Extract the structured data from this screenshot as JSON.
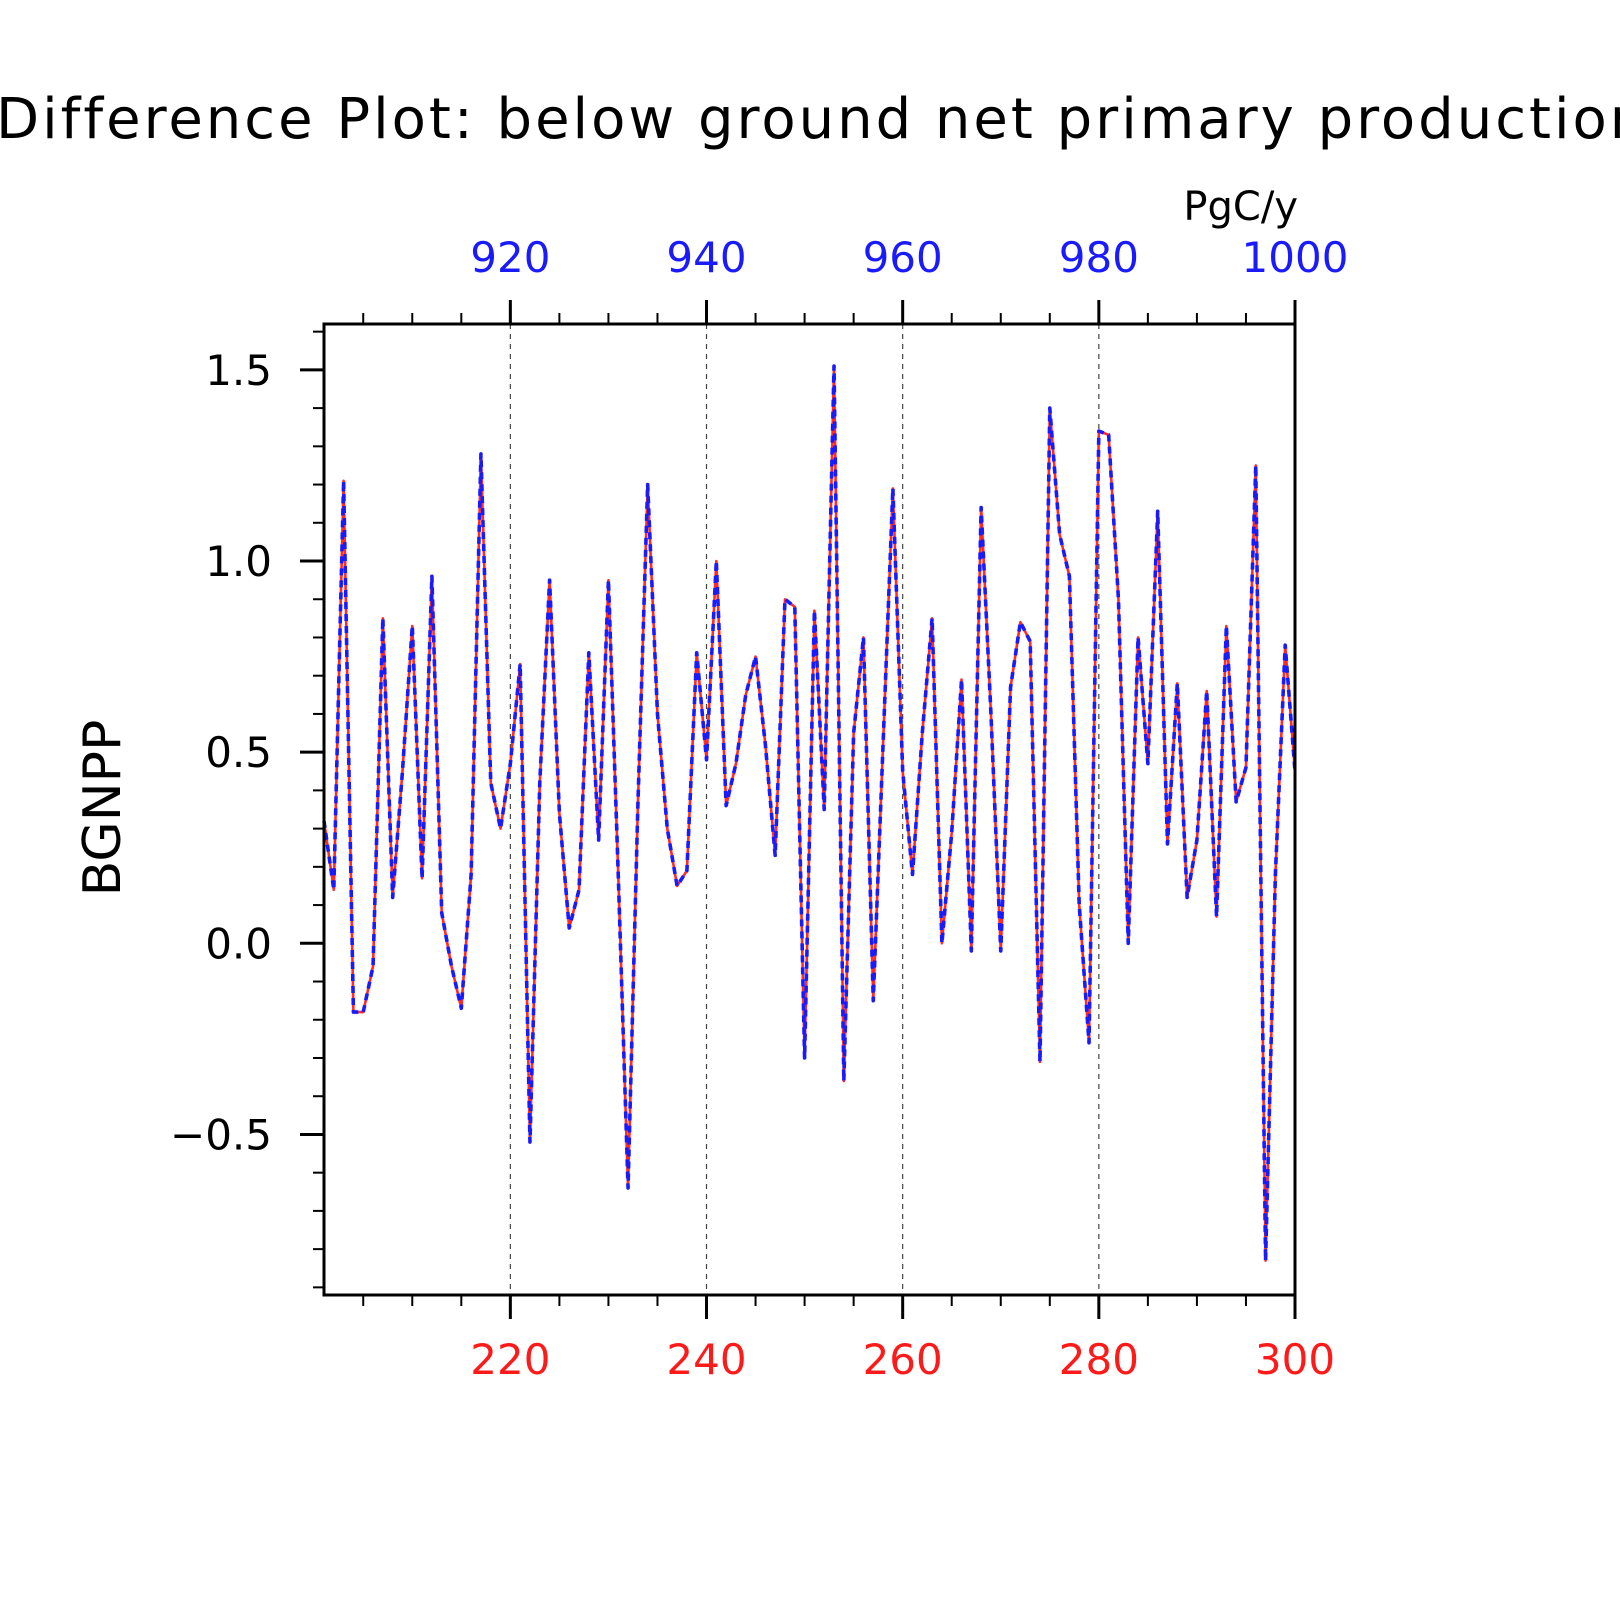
{
  "chart_data": {
    "type": "line",
    "title": "Difference Plot: below ground net primary production",
    "units": "PgC/y",
    "ylabel": "BGNPP",
    "xlabel": "",
    "xlim": [
      201,
      300
    ],
    "ylim": [
      -0.92,
      1.62
    ],
    "top_axis": {
      "ticks": [
        920,
        940,
        960,
        980,
        1000
      ],
      "labels": [
        "920",
        "940",
        "960",
        "980",
        "1000"
      ],
      "color": "#1a1aff"
    },
    "bottom_axis": {
      "ticks": [
        220,
        240,
        260,
        280,
        300
      ],
      "labels": [
        "220",
        "240",
        "260",
        "280",
        "300"
      ],
      "color": "#ff1a1a"
    },
    "y_ticks": [
      -0.5,
      0.0,
      0.5,
      1.0,
      1.5
    ],
    "y_tick_labels": [
      "−0.5",
      "0.0",
      "0.5",
      "1.0",
      "1.5"
    ],
    "grid": "vertical-dashed",
    "series": [
      {
        "style": "solid",
        "color": "#ff2a2a",
        "x_start": 201,
        "x_step": 1,
        "values": [
          0.32,
          0.14,
          1.21,
          -0.18,
          -0.18,
          -0.06,
          0.85,
          0.12,
          0.45,
          0.83,
          0.17,
          0.96,
          0.08,
          -0.06,
          -0.17,
          0.18,
          1.28,
          0.42,
          0.3,
          0.47,
          0.73,
          -0.52,
          0.42,
          0.95,
          0.34,
          0.04,
          0.14,
          0.76,
          0.27,
          0.95,
          0.18,
          -0.64,
          0.36,
          1.2,
          0.6,
          0.3,
          0.15,
          0.19,
          0.76,
          0.48,
          1.0,
          0.36,
          0.47,
          0.65,
          0.75,
          0.52,
          0.23,
          0.9,
          0.88,
          -0.3,
          0.87,
          0.35,
          1.51,
          -0.36,
          0.55,
          0.8,
          -0.15,
          0.52,
          1.19,
          0.45,
          0.18,
          0.55,
          0.85,
          0.0,
          0.29,
          0.69,
          -0.02,
          1.14,
          0.6,
          -0.02,
          0.67,
          0.84,
          0.79,
          -0.31,
          1.4,
          1.07,
          0.96,
          0.1,
          -0.26,
          1.34,
          1.33,
          0.9,
          0.0,
          0.8,
          0.47,
          1.13,
          0.26,
          0.68,
          0.12,
          0.27,
          0.66,
          0.07,
          0.83,
          0.37,
          0.46,
          1.25,
          -0.83,
          0.18,
          0.78,
          0.45
        ]
      },
      {
        "style": "dashed",
        "color": "#1a1aff",
        "x_start": 201,
        "x_step": 1,
        "values": [
          0.32,
          0.14,
          1.21,
          -0.18,
          -0.18,
          -0.06,
          0.85,
          0.12,
          0.45,
          0.83,
          0.17,
          0.96,
          0.08,
          -0.06,
          -0.17,
          0.18,
          1.28,
          0.42,
          0.3,
          0.47,
          0.73,
          -0.52,
          0.42,
          0.95,
          0.34,
          0.04,
          0.14,
          0.76,
          0.27,
          0.95,
          0.18,
          -0.64,
          0.36,
          1.2,
          0.6,
          0.3,
          0.15,
          0.19,
          0.76,
          0.48,
          1.0,
          0.36,
          0.47,
          0.65,
          0.75,
          0.52,
          0.23,
          0.9,
          0.88,
          -0.3,
          0.87,
          0.35,
          1.51,
          -0.36,
          0.55,
          0.8,
          -0.15,
          0.52,
          1.19,
          0.45,
          0.18,
          0.55,
          0.85,
          0.0,
          0.29,
          0.69,
          -0.02,
          1.14,
          0.6,
          -0.02,
          0.67,
          0.84,
          0.79,
          -0.31,
          1.4,
          1.07,
          0.96,
          0.1,
          -0.26,
          1.34,
          1.33,
          0.9,
          0.0,
          0.8,
          0.47,
          1.13,
          0.26,
          0.68,
          0.12,
          0.27,
          0.66,
          0.07,
          0.83,
          0.37,
          0.46,
          1.25,
          -0.83,
          0.18,
          0.78,
          0.45
        ]
      }
    ]
  }
}
